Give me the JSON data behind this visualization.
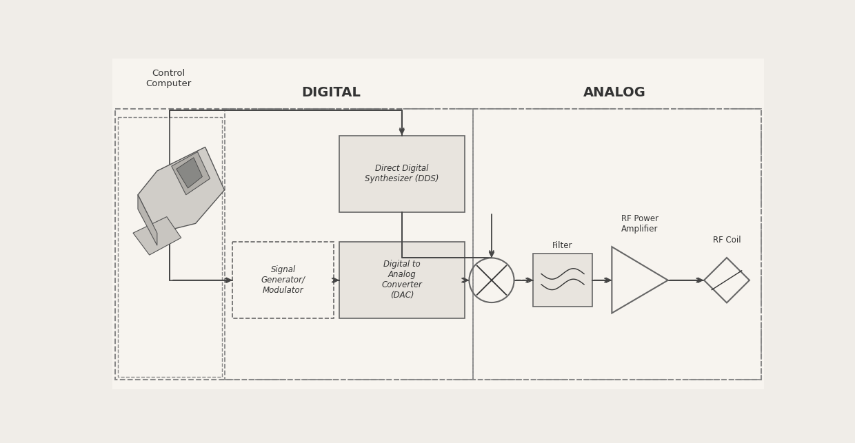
{
  "bg_color": "#f0ede8",
  "dashed_color": "#888888",
  "box_face": "#e8e4de",
  "box_edge": "#666666",
  "text_color": "#333333",
  "arrow_color": "#444444",
  "digital_label": "DIGITAL",
  "analog_label": "ANALOG",
  "control_label": "Control\nComputer",
  "signal_gen_label": "Signal\nGenerator/\nModulator",
  "dds_label": "Direct Digital\nSynthesizer (DDS)",
  "dac_label": "Digital to\nAnalog\nConverter\n(DAC)",
  "filter_label": "Filter",
  "amp_label": "RF Power\nAmplifier",
  "coil_label": "RF Coil",
  "font_size": 8.5,
  "section_font_size": 14
}
